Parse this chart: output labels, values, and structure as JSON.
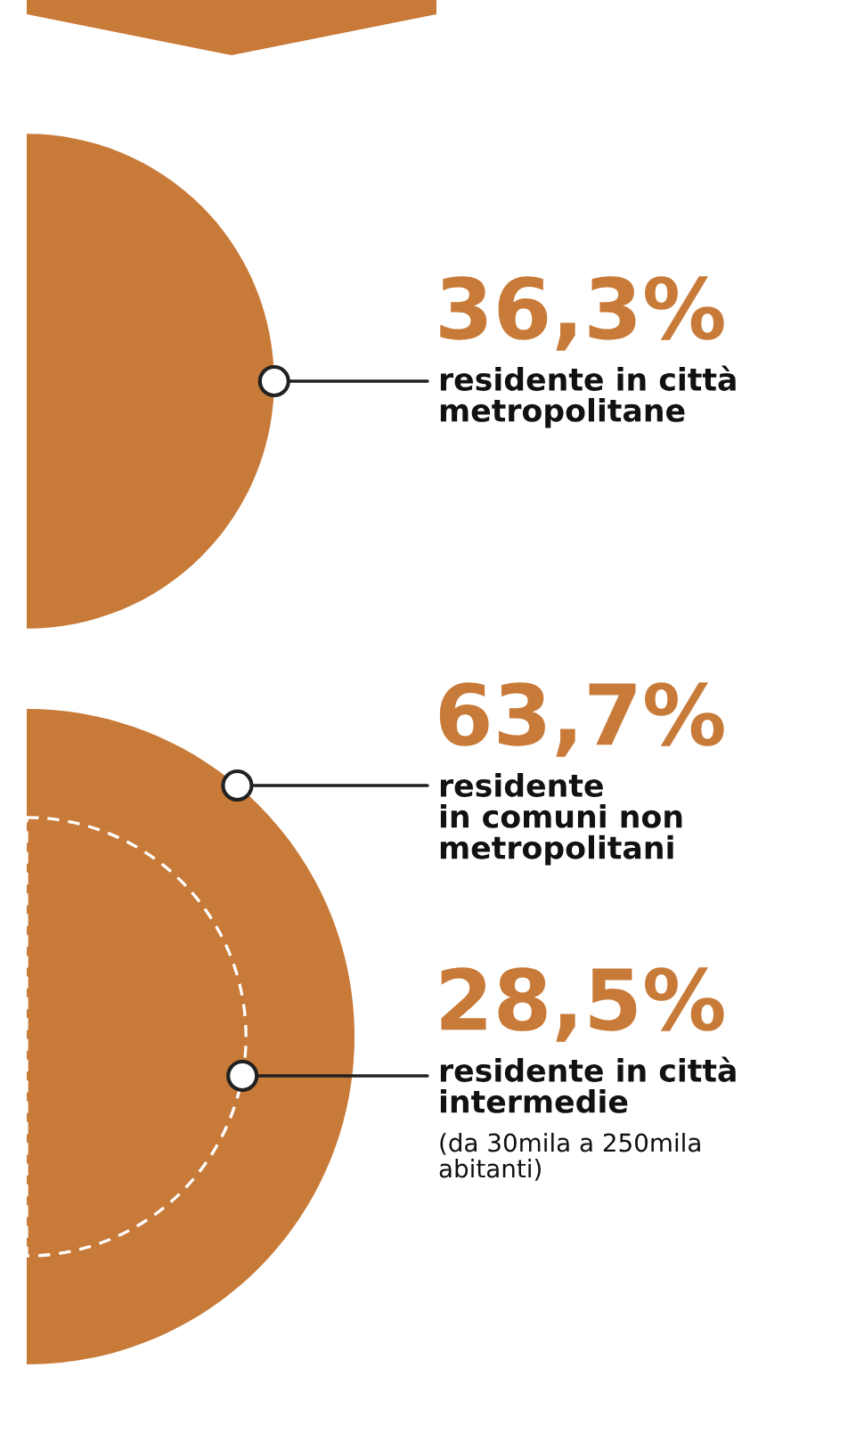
{
  "chart_data": {
    "type": "other",
    "categories": [
      "residente in città\nmetropolitane",
      "residente\nin comuni non\nmetropolitani",
      "residente in città\nintermedie"
    ],
    "values": [
      36.3,
      63.7,
      28.5
    ],
    "value_labels": [
      "36,3%",
      "63,7%",
      "28,5%"
    ],
    "color": "#c87a38",
    "annotations": [
      "(da 30mila a 250mila\nabitanti)"
    ]
  }
}
